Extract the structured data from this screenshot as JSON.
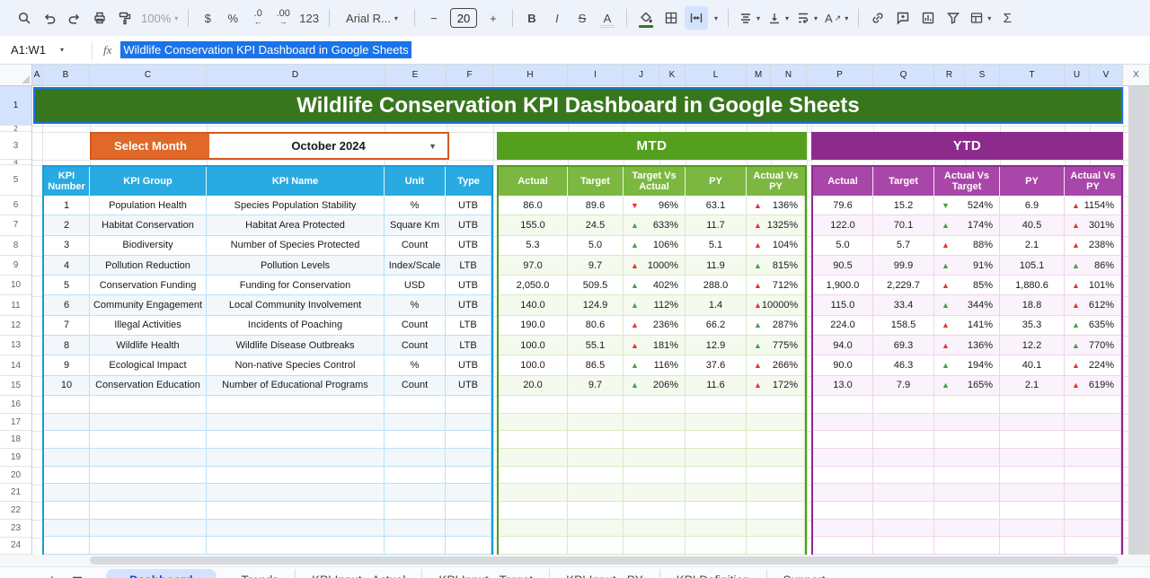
{
  "toolbar": {
    "zoom": "100%",
    "currency": "$",
    "percent": "%",
    "decrease_decimals": ".0",
    "increase_decimals": ".00",
    "more_formats": "123",
    "font": "Arial R...",
    "font_size": "20",
    "minus": "−",
    "plus": "+",
    "bold": "B",
    "italic": "I",
    "strikethrough": "S",
    "text_color": "A",
    "text_rotation": "A",
    "functions": "Σ"
  },
  "formula_bar": {
    "name_box": "A1:W1",
    "fx_label": "fx",
    "formula": "Wildlife Conservation KPI Dashboard in Google Sheets"
  },
  "grid": {
    "title": "Wildlife Conservation KPI Dashboard in Google Sheets",
    "select_month_label": "Select Month",
    "month_value": "October 2024",
    "mtd_label": "MTD",
    "ytd_label": "YTD",
    "column_letters": [
      "A",
      "B",
      "C",
      "D",
      "E",
      "F",
      "H",
      "I",
      "J",
      "K",
      "L",
      "M",
      "N",
      "P",
      "Q",
      "R",
      "S",
      "T",
      "U",
      "V",
      "X"
    ],
    "row_numbers": [
      "1",
      "2",
      "3",
      "4",
      "5",
      "6",
      "7",
      "8",
      "9",
      "10",
      "11",
      "12",
      "13",
      "14",
      "15",
      "16",
      "17",
      "18",
      "19",
      "20",
      "21",
      "22",
      "23",
      "24"
    ],
    "table": {
      "info_headers": [
        "KPI Number",
        "KPI Group",
        "KPI Name",
        "Unit",
        "Type"
      ],
      "mtd_headers": [
        "Actual",
        "Target",
        "Target Vs Actual",
        "PY",
        "Actual Vs PY"
      ],
      "ytd_headers": [
        "Actual",
        "Target",
        "Actual Vs Target",
        "PY",
        "Actual Vs PY"
      ],
      "rows": [
        {
          "num": "1",
          "group": "Population Health",
          "name": "Species Population Stability",
          "unit": "%",
          "type": "UTB",
          "mtd": [
            "86.0",
            "89.6",
            {
              "d": "down",
              "c": "red",
              "v": "96%"
            },
            "63.1",
            {
              "d": "up",
              "c": "red",
              "v": "136%"
            }
          ],
          "ytd": [
            "79.6",
            "15.2",
            {
              "d": "down",
              "c": "green",
              "v": "524%"
            },
            "6.9",
            {
              "d": "up",
              "c": "red",
              "v": "1154%"
            }
          ]
        },
        {
          "num": "2",
          "group": "Habitat Conservation",
          "name": "Habitat Area Protected",
          "unit": "Square Km",
          "type": "UTB",
          "mtd": [
            "155.0",
            "24.5",
            {
              "d": "up",
              "c": "green",
              "v": "633%"
            },
            "11.7",
            {
              "d": "up",
              "c": "red",
              "v": "1325%"
            }
          ],
          "ytd": [
            "122.0",
            "70.1",
            {
              "d": "up",
              "c": "green",
              "v": "174%"
            },
            "40.5",
            {
              "d": "up",
              "c": "red",
              "v": "301%"
            }
          ]
        },
        {
          "num": "3",
          "group": "Biodiversity",
          "name": "Number of Species Protected",
          "unit": "Count",
          "type": "UTB",
          "mtd": [
            "5.3",
            "5.0",
            {
              "d": "up",
              "c": "green",
              "v": "106%"
            },
            "5.1",
            {
              "d": "up",
              "c": "red",
              "v": "104%"
            }
          ],
          "ytd": [
            "5.0",
            "5.7",
            {
              "d": "up",
              "c": "red",
              "v": "88%"
            },
            "2.1",
            {
              "d": "up",
              "c": "red",
              "v": "238%"
            }
          ]
        },
        {
          "num": "4",
          "group": "Pollution Reduction",
          "name": "Pollution Levels",
          "unit": "Index/Scale",
          "type": "LTB",
          "mtd": [
            "97.0",
            "9.7",
            {
              "d": "up",
              "c": "red",
              "v": "1000%"
            },
            "11.9",
            {
              "d": "up",
              "c": "green",
              "v": "815%"
            }
          ],
          "ytd": [
            "90.5",
            "99.9",
            {
              "d": "up",
              "c": "green",
              "v": "91%"
            },
            "105.1",
            {
              "d": "up",
              "c": "green",
              "v": "86%"
            }
          ]
        },
        {
          "num": "5",
          "group": "Conservation Funding",
          "name": "Funding for Conservation",
          "unit": "USD",
          "type": "UTB",
          "mtd": [
            "2,050.0",
            "509.5",
            {
              "d": "up",
              "c": "green",
              "v": "402%"
            },
            "288.0",
            {
              "d": "up",
              "c": "red",
              "v": "712%"
            }
          ],
          "ytd": [
            "1,900.0",
            "2,229.7",
            {
              "d": "up",
              "c": "red",
              "v": "85%"
            },
            "1,880.6",
            {
              "d": "up",
              "c": "red",
              "v": "101%"
            }
          ]
        },
        {
          "num": "6",
          "group": "Community Engagement",
          "name": "Local Community Involvement",
          "unit": "%",
          "type": "UTB",
          "mtd": [
            "140.0",
            "124.9",
            {
              "d": "up",
              "c": "green",
              "v": "112%"
            },
            "1.4",
            {
              "d": "up",
              "c": "red",
              "v": "10000%"
            }
          ],
          "ytd": [
            "115.0",
            "33.4",
            {
              "d": "up",
              "c": "green",
              "v": "344%"
            },
            "18.8",
            {
              "d": "up",
              "c": "red",
              "v": "612%"
            }
          ]
        },
        {
          "num": "7",
          "group": "Illegal Activities",
          "name": "Incidents of Poaching",
          "unit": "Count",
          "type": "LTB",
          "mtd": [
            "190.0",
            "80.6",
            {
              "d": "up",
              "c": "red",
              "v": "236%"
            },
            "66.2",
            {
              "d": "up",
              "c": "green",
              "v": "287%"
            }
          ],
          "ytd": [
            "224.0",
            "158.5",
            {
              "d": "up",
              "c": "red",
              "v": "141%"
            },
            "35.3",
            {
              "d": "up",
              "c": "green",
              "v": "635%"
            }
          ]
        },
        {
          "num": "8",
          "group": "Wildlife Health",
          "name": "Wildlife Disease Outbreaks",
          "unit": "Count",
          "type": "LTB",
          "mtd": [
            "100.0",
            "55.1",
            {
              "d": "up",
              "c": "red",
              "v": "181%"
            },
            "12.9",
            {
              "d": "up",
              "c": "green",
              "v": "775%"
            }
          ],
          "ytd": [
            "94.0",
            "69.3",
            {
              "d": "up",
              "c": "red",
              "v": "136%"
            },
            "12.2",
            {
              "d": "up",
              "c": "green",
              "v": "770%"
            }
          ]
        },
        {
          "num": "9",
          "group": "Ecological Impact",
          "name": "Non-native Species Control",
          "unit": "%",
          "type": "UTB",
          "mtd": [
            "100.0",
            "86.5",
            {
              "d": "up",
              "c": "green",
              "v": "116%"
            },
            "37.6",
            {
              "d": "up",
              "c": "red",
              "v": "266%"
            }
          ],
          "ytd": [
            "90.0",
            "46.3",
            {
              "d": "up",
              "c": "green",
              "v": "194%"
            },
            "40.1",
            {
              "d": "up",
              "c": "red",
              "v": "224%"
            }
          ]
        },
        {
          "num": "10",
          "group": "Conservation Education",
          "name": "Number of Educational Programs",
          "unit": "Count",
          "type": "UTB",
          "mtd": [
            "20.0",
            "9.7",
            {
              "d": "up",
              "c": "green",
              "v": "206%"
            },
            "11.6",
            {
              "d": "up",
              "c": "red",
              "v": "172%"
            }
          ],
          "ytd": [
            "13.0",
            "7.9",
            {
              "d": "up",
              "c": "green",
              "v": "165%"
            },
            "2.1",
            {
              "d": "up",
              "c": "red",
              "v": "619%"
            }
          ]
        }
      ]
    }
  },
  "sheet_tabs": {
    "add_label": "+",
    "items": [
      "Dashboard",
      "Trends",
      "KPI Input - Actual",
      "KPI Input - Target",
      "KPI Input - PY",
      "KPI Definition",
      "Support"
    ],
    "active": "Dashboard"
  },
  "colors": {
    "title_green": "#38761d",
    "selection_blue": "#1a73e8",
    "select_month_orange": "#e0692a",
    "mtd_green": "#54a01e",
    "mtd_header_green": "#7cb841",
    "ytd_purple": "#8c2b8c",
    "ytd_header_purple": "#a946a9",
    "kpi_header_blue": "#29abe2",
    "up_red": "#e5352b",
    "up_green": "#3fa23f",
    "tab_active_blue": "#0b57d0"
  }
}
